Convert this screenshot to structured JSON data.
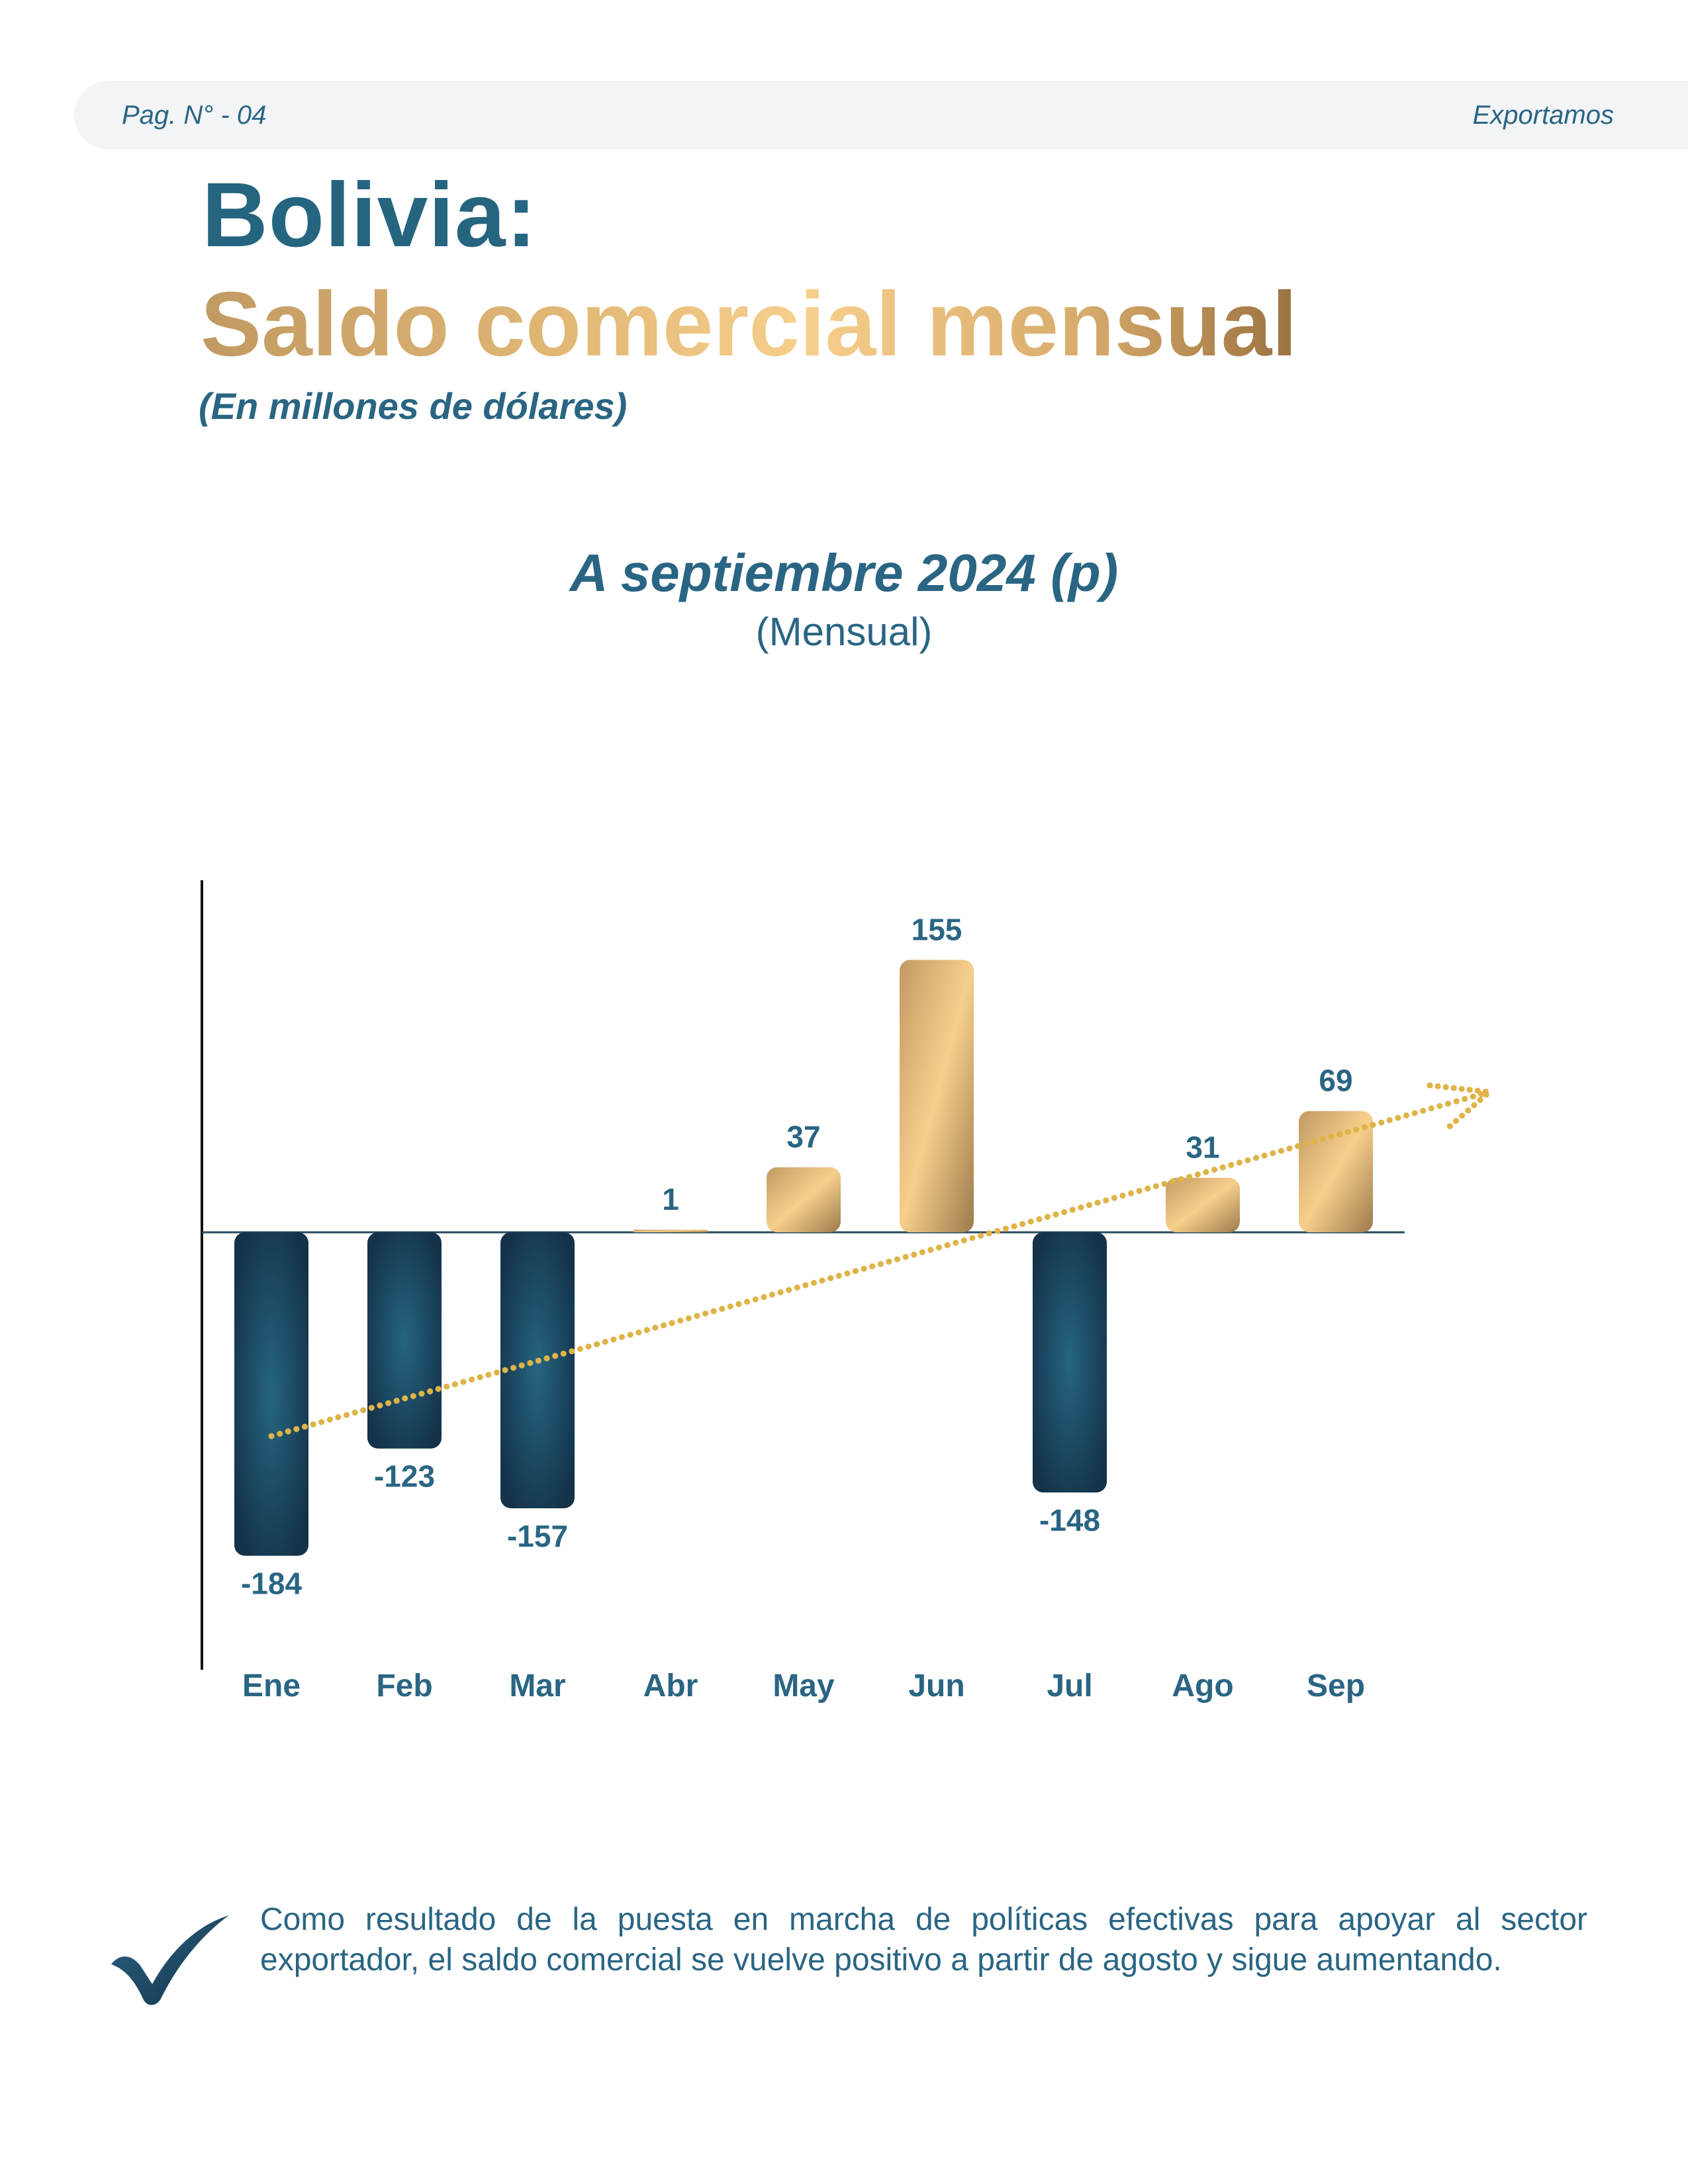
{
  "header": {
    "page_label": "Pag. N° - ",
    "page_number": "04",
    "brand": "Exportamos"
  },
  "title": {
    "line1": "Bolivia:",
    "line2": "Saldo comercial mensual",
    "units": "(En millones de dólares)"
  },
  "chart_data": {
    "type": "bar",
    "title": "A septiembre 2024 (p)",
    "subtitle": "(Mensual)",
    "categories": [
      "Ene",
      "Feb",
      "Mar",
      "Abr",
      "May",
      "Jun",
      "Jul",
      "Ago",
      "Sep"
    ],
    "values": [
      -184,
      -123,
      -157,
      1,
      37,
      155,
      -148,
      31,
      69
    ],
    "value_labels": [
      "-184",
      "-123",
      "-157",
      "1",
      "37",
      "155",
      "-148",
      "31",
      "69"
    ],
    "trendline": true,
    "xlabel": "",
    "ylabel": "",
    "colors": {
      "positive_gradient": [
        "#c19a62",
        "#f7cf8c",
        "#9c7a4c"
      ],
      "negative_gradient": [
        "#266580",
        "#14324a"
      ],
      "trend": "#dfb347",
      "labels": "#2a6583"
    }
  },
  "note": {
    "text": "Como resultado de la puesta en marcha de políticas efectivas para apoyar al sector exportador, el saldo comercial se vuelve positivo a partir de agosto y sigue aumentando."
  }
}
